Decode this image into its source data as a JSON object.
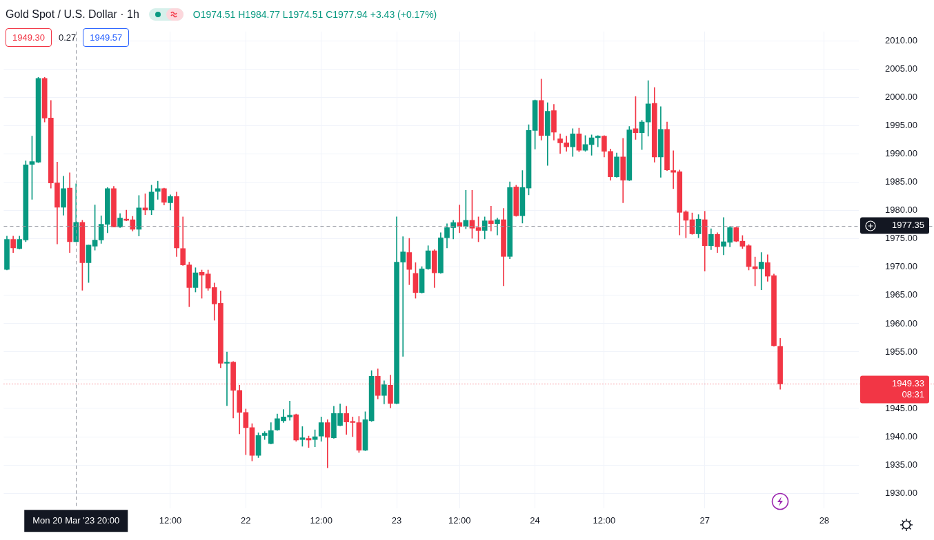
{
  "chart_data": {
    "type": "candlestick",
    "title": "Gold Spot / U.S. Dollar · 1h",
    "categories": [
      null,
      null,
      null,
      null,
      null,
      null,
      null,
      null,
      null,
      null,
      null,
      "Mon 20 Mar '23 20:00",
      null,
      null,
      null,
      null,
      null,
      null,
      null,
      null,
      null,
      null,
      null,
      null,
      null,
      null,
      "12:00",
      null,
      null,
      null,
      null,
      null,
      null,
      null,
      null,
      null,
      null,
      null,
      "22",
      null,
      null,
      null,
      null,
      null,
      null,
      null,
      null,
      null,
      null,
      null,
      "12:00",
      null,
      null,
      null,
      null,
      null,
      null,
      null,
      null,
      null,
      null,
      null,
      "23",
      null,
      null,
      null,
      null,
      null,
      null,
      null,
      null,
      null,
      "12:00",
      null,
      null,
      null,
      null,
      null,
      null,
      null,
      null,
      null,
      null,
      null,
      "24",
      null,
      null,
      null,
      null,
      null,
      null,
      null,
      null,
      null,
      null,
      "12:00",
      null,
      null,
      null,
      null,
      null,
      null,
      null,
      null,
      null,
      null,
      null,
      null,
      null,
      null,
      null,
      "27",
      null,
      null,
      null,
      null,
      null,
      null,
      null,
      null,
      null,
      null,
      null,
      null,
      null,
      null,
      null,
      null,
      null,
      null,
      "28",
      null,
      null,
      null,
      null,
      null
    ],
    "ohlc": [
      [
        1969.6,
        1975.5,
        1969.5,
        1974.9
      ],
      [
        1974.9,
        1975.5,
        1972.6,
        1973.4
      ],
      [
        1973.3,
        1975.5,
        1973.2,
        1974.9
      ],
      [
        1974.8,
        1988.8,
        1974.5,
        1988.1
      ],
      [
        1988.2,
        1993.2,
        1982.0,
        1988.7
      ],
      [
        1988.6,
        2003.6,
        1988.5,
        2003.4
      ],
      [
        2003.4,
        2003.6,
        1995.7,
        1996.4
      ],
      [
        1996.4,
        1999.5,
        1984.0,
        1984.9
      ],
      [
        1984.9,
        1988.6,
        1974.1,
        1980.6
      ],
      [
        1980.6,
        1986.1,
        1979.2,
        1983.9
      ],
      [
        1984.0,
        1986.7,
        1972.6,
        1974.51
      ],
      [
        1974.51,
        1984.77,
        1974.51,
        1977.94
      ],
      [
        1977.94,
        1978.3,
        1965.9,
        1970.8
      ],
      [
        1970.8,
        1973.9,
        1967.3,
        1973.9
      ],
      [
        1973.7,
        1981.0,
        1973.0,
        1974.8
      ],
      [
        1974.8,
        1979.1,
        1974.2,
        1977.6
      ],
      [
        1977.6,
        1984.1,
        1976.1,
        1983.9
      ],
      [
        1983.9,
        1984.3,
        1977.1,
        1977.1
      ],
      [
        1977.1,
        1979.5,
        1977.0,
        1978.7
      ],
      [
        1978.5,
        1980.1,
        1978.2,
        1978.3
      ],
      [
        1978.4,
        1979.0,
        1976.4,
        1976.7
      ],
      [
        1976.7,
        1982.7,
        1975.5,
        1980.5
      ],
      [
        1980.5,
        1983.0,
        1979.3,
        1980.1
      ],
      [
        1980.1,
        1984.5,
        1979.3,
        1983.3
      ],
      [
        1983.4,
        1985.2,
        1982.0,
        1983.9
      ],
      [
        1983.9,
        1984.0,
        1981.0,
        1981.5
      ],
      [
        1981.4,
        1982.8,
        1980.1,
        1982.5
      ],
      [
        1982.5,
        1983.3,
        1971.9,
        1973.4
      ],
      [
        1973.3,
        1978.9,
        1970.3,
        1970.4
      ],
      [
        1970.4,
        1970.9,
        1963.0,
        1966.4
      ],
      [
        1966.4,
        1969.9,
        1965.6,
        1969.0
      ],
      [
        1969.1,
        1969.5,
        1964.5,
        1968.6
      ],
      [
        1968.8,
        1969.5,
        1965.9,
        1966.3
      ],
      [
        1966.4,
        1967.2,
        1960.6,
        1963.5
      ],
      [
        1963.6,
        1965.8,
        1952.2,
        1953.0
      ],
      [
        1953.0,
        1955.0,
        1945.5,
        1953.2
      ],
      [
        1953.2,
        1953.3,
        1943.3,
        1948.2
      ],
      [
        1948.2,
        1949.1,
        1940.5,
        1944.3
      ],
      [
        1944.3,
        1944.9,
        1936.8,
        1941.6
      ],
      [
        1941.6,
        1942.3,
        1935.7,
        1936.7
      ],
      [
        1936.7,
        1940.7,
        1936.3,
        1940.2
      ],
      [
        1940.2,
        1940.9,
        1939.5,
        1940.6
      ],
      [
        1938.8,
        1942.5,
        1938.7,
        1941.1
      ],
      [
        1941.2,
        1944.0,
        1941.1,
        1943.2
      ],
      [
        1942.8,
        1944.8,
        1942.5,
        1943.5
      ],
      [
        1943.5,
        1946.3,
        1942.9,
        1943.8
      ],
      [
        1943.9,
        1944.0,
        1939.2,
        1939.4
      ],
      [
        1939.5,
        1941.8,
        1938.3,
        1939.8
      ],
      [
        1939.7,
        1940.1,
        1938.1,
        1939.4
      ],
      [
        1939.5,
        1941.2,
        1938.2,
        1940.0
      ],
      [
        1940.1,
        1943.5,
        1939.2,
        1942.5
      ],
      [
        1942.5,
        1943.0,
        1934.5,
        1939.9
      ],
      [
        1939.8,
        1945.4,
        1939.7,
        1944.1
      ],
      [
        1942.0,
        1945.8,
        1941.9,
        1944.1
      ],
      [
        1944.1,
        1945.4,
        1940.4,
        1942.6
      ],
      [
        1942.7,
        1943.5,
        1940.0,
        1942.5
      ],
      [
        1942.5,
        1943.6,
        1937.2,
        1937.6
      ],
      [
        1937.6,
        1944.4,
        1937.5,
        1943.0
      ],
      [
        1942.8,
        1951.7,
        1942.7,
        1950.7
      ],
      [
        1950.7,
        1952.0,
        1946.7,
        1947.3
      ],
      [
        1947.3,
        1949.9,
        1945.8,
        1949.2
      ],
      [
        1949.1,
        1950.9,
        1945.1,
        1945.9
      ],
      [
        1945.9,
        1978.9,
        1945.8,
        1970.9
      ],
      [
        1970.9,
        1975.4,
        1954.2,
        1972.7
      ],
      [
        1972.6,
        1975.1,
        1966.9,
        1969.6
      ],
      [
        1968.9,
        1970.8,
        1964.5,
        1965.5
      ],
      [
        1965.5,
        1970.1,
        1965.4,
        1969.7
      ],
      [
        1969.7,
        1973.8,
        1969.6,
        1972.9
      ],
      [
        1972.9,
        1973.1,
        1966.4,
        1969.0
      ],
      [
        1969.0,
        1976.1,
        1968.9,
        1975.2
      ],
      [
        1975.2,
        1977.7,
        1973.4,
        1977.0
      ],
      [
        1977.0,
        1978.3,
        1975.0,
        1977.9
      ],
      [
        1977.9,
        1981.0,
        1976.1,
        1977.2
      ],
      [
        1977.2,
        1983.6,
        1976.8,
        1978.3
      ],
      [
        1978.3,
        1983.6,
        1975.1,
        1976.9
      ],
      [
        1977.0,
        1978.9,
        1974.5,
        1976.5
      ],
      [
        1976.5,
        1978.9,
        1975.0,
        1978.2
      ],
      [
        1978.2,
        1980.8,
        1976.4,
        1977.7
      ],
      [
        1977.7,
        1978.7,
        1975.7,
        1978.4
      ],
      [
        1978.4,
        1980.4,
        1966.7,
        1971.9
      ],
      [
        1971.9,
        1985.1,
        1971.5,
        1984.1
      ],
      [
        1984.2,
        1984.5,
        1979.0,
        1979.1
      ],
      [
        1979.1,
        1987.1,
        1977.8,
        1984.1
      ],
      [
        1984.0,
        1995.2,
        1982.8,
        1994.2
      ],
      [
        1994.2,
        1999.6,
        1990.9,
        1999.5
      ],
      [
        1999.5,
        2003.3,
        1992.5,
        1993.3
      ],
      [
        1993.3,
        1999.1,
        1988.0,
        1997.6
      ],
      [
        1997.7,
        1998.8,
        1992.5,
        1993.9
      ],
      [
        1992.7,
        1993.6,
        1990.1,
        1992.0
      ],
      [
        1992.0,
        1993.2,
        1990.5,
        1991.3
      ],
      [
        1991.3,
        1994.5,
        1989.6,
        1993.6
      ],
      [
        1993.6,
        1994.6,
        1990.4,
        1990.7
      ],
      [
        1990.7,
        1993.3,
        1990.5,
        1991.7
      ],
      [
        1991.7,
        1993.4,
        1989.8,
        1992.9
      ],
      [
        1992.9,
        1993.3,
        1991.3,
        1993.2
      ],
      [
        1993.2,
        1993.3,
        1989.5,
        1990.5
      ],
      [
        1990.5,
        1990.9,
        1985.4,
        1986.0
      ],
      [
        1986.0,
        1990.2,
        1985.9,
        1989.5
      ],
      [
        1989.5,
        1992.8,
        1981.4,
        1985.4
      ],
      [
        1985.4,
        1994.9,
        1985.3,
        1994.3
      ],
      [
        1994.5,
        2000.2,
        1992.6,
        1993.8
      ],
      [
        1993.8,
        1996.0,
        1990.8,
        1995.7
      ],
      [
        1995.7,
        2003.0,
        1993.2,
        1998.9
      ],
      [
        1999.0,
        2001.8,
        1988.6,
        1989.5
      ],
      [
        1989.5,
        1998.4,
        1985.9,
        1994.4
      ],
      [
        1994.4,
        1995.7,
        1987.1,
        1987.2
      ],
      [
        1987.1,
        1990.6,
        1983.9,
        1986.8
      ],
      [
        1986.9,
        1987.2,
        1975.7,
        1979.7
      ],
      [
        1979.8,
        1980.0,
        1975.2,
        1978.3
      ],
      [
        1978.4,
        1979.6,
        1975.8,
        1975.9
      ],
      [
        1975.9,
        1979.3,
        1975.2,
        1978.5
      ],
      [
        1978.4,
        1979.9,
        1969.3,
        1973.8
      ],
      [
        1973.8,
        1976.8,
        1973.1,
        1975.8
      ],
      [
        1975.8,
        1976.1,
        1972.6,
        1973.6
      ],
      [
        1973.7,
        1978.8,
        1972.2,
        1974.5
      ],
      [
        1974.4,
        1977.2,
        1973.6,
        1977.0
      ],
      [
        1977.0,
        1977.1,
        1974.5,
        1974.6
      ],
      [
        1974.6,
        1975.6,
        1973.3,
        1973.7
      ],
      [
        1973.8,
        1974.0,
        1969.5,
        1970.1
      ],
      [
        1970.1,
        1971.8,
        1966.7,
        1969.7
      ],
      [
        1969.7,
        1972.6,
        1966.0,
        1970.9
      ],
      [
        1970.8,
        1972.2,
        1967.5,
        1968.4
      ],
      [
        1968.5,
        1968.8,
        1956.0,
        1956.1
      ],
      [
        1956.0,
        1957.4,
        1948.4,
        1949.33
      ],
      null,
      null,
      null,
      null,
      null,
      null,
      null,
      null,
      null,
      null,
      null,
      null
    ],
    "colors": [
      "#089981",
      "#f23645",
      "#089981",
      "#089981",
      "#089981",
      "#089981",
      "#f23645",
      "#f23645",
      "#f23645",
      "#089981",
      "#f23645",
      "#089981",
      "#f23645",
      "#089981",
      "#089981",
      "#089981",
      "#089981",
      "#f23645",
      "#089981",
      "#f23645",
      "#f23645",
      "#089981",
      "#f23645",
      "#089981",
      "#089981",
      "#f23645",
      "#089981",
      "#f23645",
      "#f23645",
      "#f23645",
      "#089981",
      "#f23645",
      "#f23645",
      "#f23645",
      "#f23645",
      "#089981",
      "#f23645",
      "#f23645",
      "#f23645",
      "#f23645",
      "#089981",
      "#089981",
      "#089981",
      "#089981",
      "#089981",
      "#089981",
      "#f23645",
      "#089981",
      "#f23645",
      "#089981",
      "#089981",
      "#f23645",
      "#089981",
      "#089981",
      "#f23645",
      "#f23645",
      "#f23645",
      "#089981",
      "#089981",
      "#f23645",
      "#089981",
      "#f23645",
      "#089981",
      "#089981",
      "#f23645",
      "#f23645",
      "#089981",
      "#089981",
      "#f23645",
      "#089981",
      "#089981",
      "#089981",
      "#f23645",
      "#089981",
      "#f23645",
      "#f23645",
      "#089981",
      "#f23645",
      "#089981",
      "#f23645",
      "#089981",
      "#f23645",
      "#089981",
      "#089981",
      "#089981",
      "#f23645",
      "#089981",
      "#f23645",
      "#f23645",
      "#f23645",
      "#089981",
      "#f23645",
      "#089981",
      "#089981",
      "#089981",
      "#f23645",
      "#f23645",
      "#089981",
      "#f23645",
      "#089981",
      "#f23645",
      "#089981",
      "#089981",
      "#f23645",
      "#089981",
      "#f23645",
      "#f23645",
      "#f23645",
      "#f23645",
      "#f23645",
      "#089981",
      "#f23645",
      "#089981",
      "#f23645",
      "#089981",
      "#089981",
      "#f23645",
      "#f23645",
      "#f23645",
      "#f23645",
      "#089981",
      "#f23645",
      "#f23645",
      "#f23645",
      null,
      null,
      null,
      null,
      null,
      null,
      null,
      null,
      null,
      null,
      null,
      null
    ],
    "ylim": [
      1927.3,
      2011.7
    ],
    "yticks": [
      {
        "value": 1930,
        "label": "1930.00"
      },
      {
        "value": 1935,
        "label": "1935.00"
      },
      {
        "value": 1940,
        "label": "1940.00"
      },
      {
        "value": 1945,
        "label": "1945.00"
      },
      {
        "value": 1950,
        "label": null
      },
      {
        "value": 1955,
        "label": "1955.00"
      },
      {
        "value": 1960,
        "label": "1960.00"
      },
      {
        "value": 1965,
        "label": "1965.00"
      },
      {
        "value": 1970,
        "label": "1970.00"
      },
      {
        "value": 1975,
        "label": "1975.00"
      },
      {
        "value": 1980,
        "label": "1980.00"
      },
      {
        "value": 1985,
        "label": "1985.00"
      },
      {
        "value": 1990,
        "label": "1990.00"
      },
      {
        "value": 1995,
        "label": "1995.00"
      },
      {
        "value": 2000,
        "label": "2000.00"
      },
      {
        "value": 2005,
        "label": "2005.00"
      },
      {
        "value": 2010,
        "label": "2010.00"
      }
    ],
    "grid": true,
    "ref_lines": [
      {
        "axis": "y",
        "value": 1977.35,
        "label": "1977.35",
        "color": "#9598a1",
        "line_style": "dashed"
      },
      {
        "axis": "y",
        "value": 1949.33,
        "label": "1949.33",
        "color": "#f23645",
        "line_style": "dotted"
      },
      {
        "axis": "x",
        "value": "Mon 20 Mar '23 20:00",
        "color": "#9598a1",
        "line_style": "dashed"
      }
    ],
    "annotations": [
      "O1974.51 H1984.77 L1974.51 C1977.94 +3.43 (+0.17%)",
      "1949.30",
      "0.27",
      "1949.57",
      "08:31"
    ]
  }
}
